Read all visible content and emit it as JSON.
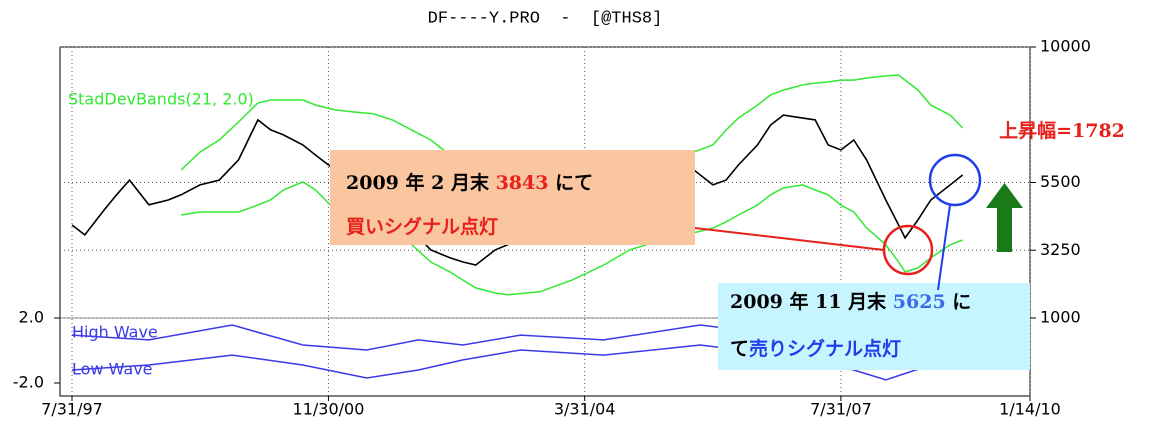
{
  "chart_data": [
    {
      "type": "line",
      "title": "DF----Y.PRO  -  [@THS8]",
      "x": [
        "1997-07-31",
        "1997-09-30",
        "1997-12-31",
        "1998-02-28",
        "1998-04-30",
        "1998-07-31",
        "1998-10-31",
        "1998-12-31",
        "1999-03-31",
        "1999-06-30",
        "1999-09-30",
        "1999-12-31",
        "2000-02-29",
        "2000-04-30",
        "2000-07-31",
        "2000-09-30",
        "2000-12-31",
        "2001-03-31",
        "2001-06-30",
        "2001-09-30",
        "2001-12-31",
        "2002-03-31",
        "2002-06-30",
        "2002-08-31",
        "2002-10-31",
        "2003-01-31",
        "2003-03-31",
        "2003-08-31",
        "2004-01-31",
        "2004-06-30",
        "2004-10-31",
        "2005-03-31",
        "2005-08-31",
        "2005-11-30",
        "2006-01-31",
        "2006-03-31",
        "2006-06-30",
        "2006-08-31",
        "2006-10-31",
        "2007-01-31",
        "2007-03-31",
        "2007-05-31",
        "2007-07-31",
        "2007-09-30",
        "2007-11-30",
        "2008-02-29",
        "2008-04-30",
        "2008-05-31",
        "2008-07-31",
        "2008-09-30",
        "2008-12-31",
        "2009-02-28"
      ],
      "values": [
        4090,
        3760,
        4590,
        5090,
        5580,
        4760,
        4920,
        5090,
        5420,
        5580,
        6250,
        7580,
        7250,
        7080,
        6750,
        6410,
        5920,
        5580,
        5090,
        4590,
        3920,
        3260,
        3000,
        2860,
        2760,
        3260,
        3430,
        3900,
        4400,
        4900,
        5100,
        5500,
        5920,
        5420,
        5580,
        6080,
        6750,
        7410,
        7740,
        7640,
        7580,
        6750,
        6580,
        6910,
        6250,
        4920,
        4090,
        3660,
        4260,
        4920,
        5420,
        5750
      ],
      "color": "#000000",
      "bands": {
        "label": "StadDevBands(21, 2.0)",
        "color": "#33e833",
        "upper": [
          null,
          null,
          null,
          null,
          null,
          null,
          null,
          5920,
          6510,
          6910,
          7510,
          8140,
          8240,
          8240,
          8240,
          8070,
          7910,
          7840,
          7780,
          7580,
          7240,
          6910,
          6410,
          5920,
          5490,
          5190,
          5050,
          4920,
          5090,
          5250,
          5580,
          6080,
          6510,
          6750,
          7240,
          7640,
          8070,
          8410,
          8570,
          8740,
          8800,
          8840,
          8900,
          8900,
          8970,
          9040,
          9070,
          8900,
          8570,
          8070,
          7740,
          7310
        ],
        "lower": [
          null,
          null,
          null,
          null,
          null,
          null,
          null,
          4420,
          4520,
          4520,
          4520,
          4750,
          4920,
          5250,
          5520,
          5250,
          4590,
          4260,
          4090,
          3920,
          3430,
          2860,
          2530,
          2260,
          2000,
          1830,
          1770,
          1870,
          2260,
          2760,
          3260,
          3590,
          3830,
          3990,
          4190,
          4420,
          4750,
          5090,
          5320,
          5420,
          5250,
          5090,
          4750,
          4520,
          3990,
          3430,
          2860,
          2530,
          2660,
          3000,
          3430,
          3590
        ]
      },
      "xlim": [
        "1997-07-31",
        "2010-01-14"
      ],
      "xticks": [
        {
          "value": "1997-07-31",
          "label": "7/31/97"
        },
        {
          "value": "2000-11-30",
          "label": "11/30/00"
        },
        {
          "value": "2004-03-31",
          "label": "3/31/04"
        },
        {
          "value": "2007-07-31",
          "label": "7/31/07"
        },
        {
          "value": "2010-01-14",
          "label": "1/14/10"
        }
      ],
      "ylim": [
        1000,
        10000
      ],
      "yticks": [
        1000,
        3250,
        5500,
        10000
      ],
      "grid": true
    },
    {
      "type": "line",
      "x": [
        "1997-07-31",
        "1998-07-31",
        "1999-08-31",
        "2000-07-31",
        "2001-05-31",
        "2002-01-31",
        "2002-08-31",
        "2003-05-31",
        "2004-06-30",
        "2005-09-30",
        "2006-10-31",
        "2007-09-30",
        "2008-02-29",
        "2008-09-30",
        "2009-02-28"
      ],
      "xlim": [
        "1997-07-31",
        "2010-01-14"
      ],
      "ylim": [
        -2,
        2
      ],
      "yticks": [
        {
          "value": 2,
          "label": "2.0"
        },
        {
          "value": -2,
          "label": "-2.0"
        }
      ],
      "series": [
        {
          "name": "High Wave",
          "color": "#3a3ae8",
          "values": [
            0.95,
            0.65,
            1.57,
            0.34,
            0.03,
            0.65,
            0.34,
            0.95,
            0.65,
            1.57,
            0.95,
            0.34,
            -0.28,
            0.65,
            1.26
          ]
        },
        {
          "name": "Low Wave",
          "color": "#3a3ae8",
          "values": [
            -1.2,
            -0.89,
            -0.28,
            -0.89,
            -1.69,
            -1.2,
            -0.58,
            0.03,
            -0.28,
            0.34,
            -0.28,
            -1.2,
            -1.81,
            -0.89,
            -0.28
          ]
        }
      ]
    }
  ],
  "annotations": {
    "rise": "上昇幅=1782",
    "buy": {
      "line1": [
        "2009 年 2 月末 ",
        "3843",
        " にて"
      ],
      "line2": "買いシグナル点灯"
    },
    "sell": {
      "line1": [
        "2009 年 11 月末 ",
        "5625",
        " に"
      ],
      "line2": [
        "て",
        "売りシグナル点灯"
      ]
    }
  }
}
